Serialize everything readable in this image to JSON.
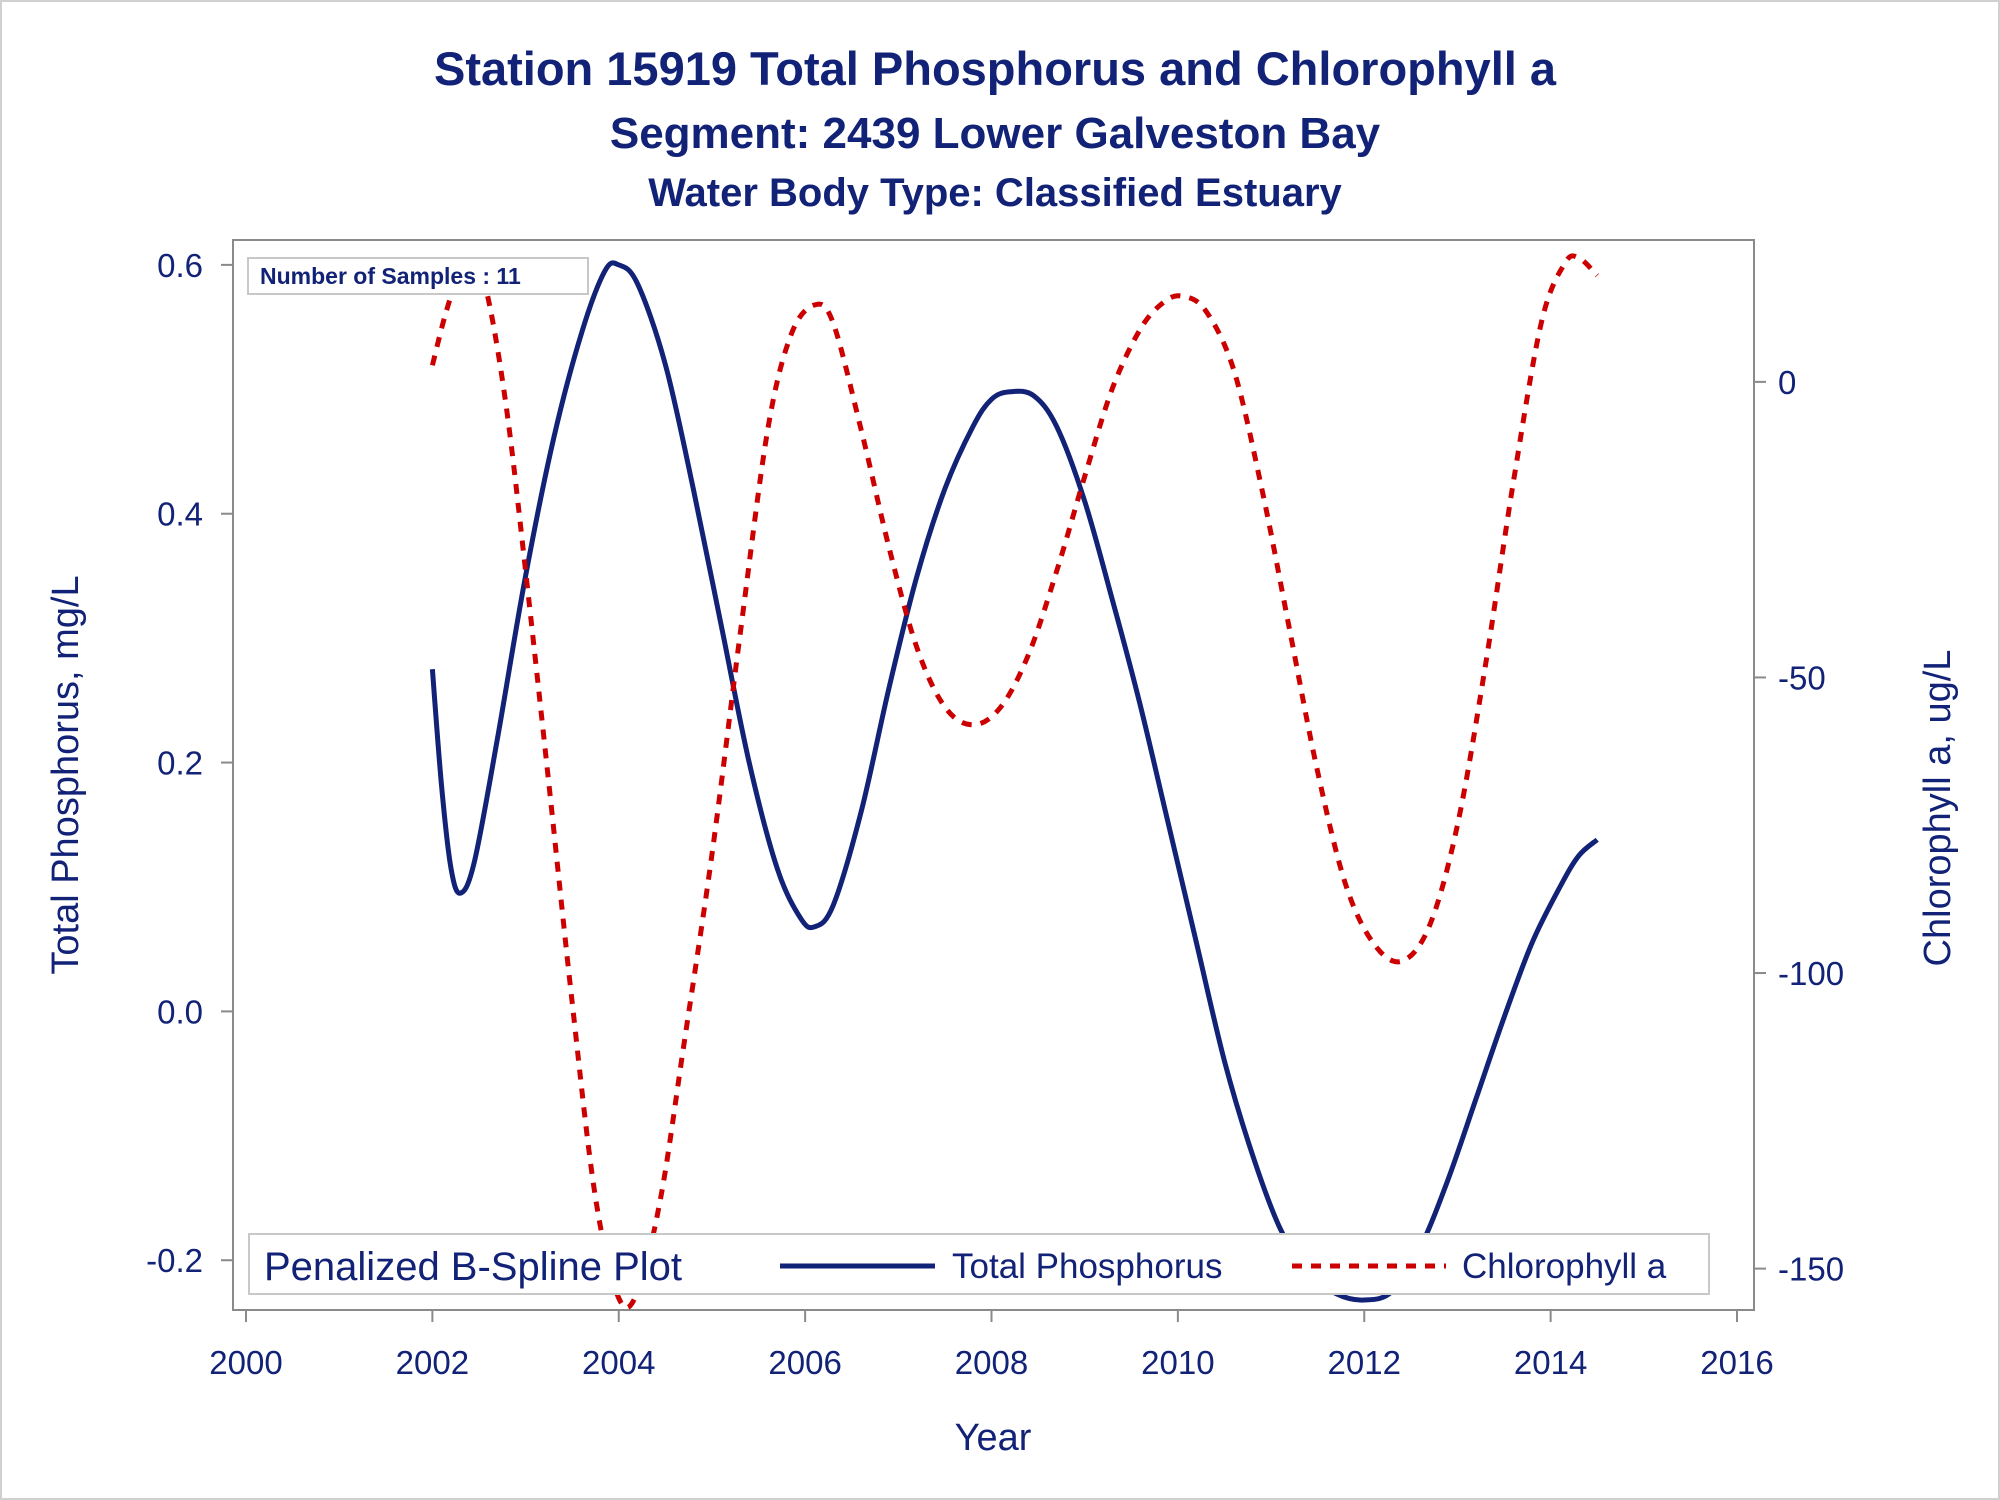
{
  "titles": [
    "Station 15919  Total Phosphorus and Chlorophyll a",
    "Segment: 2439  Lower Galveston Bay",
    "Water Body Type: Classified Estuary"
  ],
  "inset_label": "Number of Samples : 11",
  "colors": {
    "text": "#112277",
    "phosphorus": "#112277",
    "chlorophyll": "#cc0000",
    "axis": "#8a8a8a"
  },
  "chart_data": {
    "type": "line",
    "xlabel": "Year",
    "ylabel": "Total Phosphorus, mg/L",
    "y2label": "Chlorophyll a, ug/L",
    "xlim": [
      2000,
      2016
    ],
    "ylim": [
      -0.24,
      0.62
    ],
    "y2lim": [
      -157,
      24
    ],
    "x_ticks": [
      "2000",
      "2002",
      "2004",
      "2006",
      "2008",
      "2010",
      "2012",
      "2014",
      "2016"
    ],
    "y_ticks": [
      "-0.2",
      "0.0",
      "0.2",
      "0.4",
      "0.6"
    ],
    "y2_ticks": [
      "-150",
      "-100",
      "-50",
      "0"
    ],
    "legend": {
      "title": "Penalized B-Spline Plot",
      "position": "bottom"
    },
    "series": [
      {
        "name": "Total Phosphorus",
        "axis": "left",
        "style": "solid",
        "points": [
          [
            2002.0,
            0.275
          ],
          [
            2002.1,
            0.18
          ],
          [
            2002.2,
            0.115
          ],
          [
            2002.3,
            0.095
          ],
          [
            2002.45,
            0.12
          ],
          [
            2002.7,
            0.22
          ],
          [
            2003.0,
            0.35
          ],
          [
            2003.3,
            0.46
          ],
          [
            2003.6,
            0.545
          ],
          [
            2003.85,
            0.595
          ],
          [
            2004.0,
            0.6
          ],
          [
            2004.2,
            0.585
          ],
          [
            2004.5,
            0.52
          ],
          [
            2004.8,
            0.42
          ],
          [
            2005.1,
            0.31
          ],
          [
            2005.4,
            0.2
          ],
          [
            2005.7,
            0.115
          ],
          [
            2005.95,
            0.075
          ],
          [
            2006.1,
            0.068
          ],
          [
            2006.3,
            0.085
          ],
          [
            2006.6,
            0.16
          ],
          [
            2006.9,
            0.26
          ],
          [
            2007.2,
            0.35
          ],
          [
            2007.5,
            0.42
          ],
          [
            2007.8,
            0.47
          ],
          [
            2008.0,
            0.492
          ],
          [
            2008.2,
            0.498
          ],
          [
            2008.45,
            0.495
          ],
          [
            2008.7,
            0.47
          ],
          [
            2009.0,
            0.41
          ],
          [
            2009.3,
            0.33
          ],
          [
            2009.6,
            0.245
          ],
          [
            2009.9,
            0.15
          ],
          [
            2010.2,
            0.055
          ],
          [
            2010.5,
            -0.04
          ],
          [
            2010.8,
            -0.115
          ],
          [
            2011.1,
            -0.175
          ],
          [
            2011.4,
            -0.21
          ],
          [
            2011.7,
            -0.227
          ],
          [
            2012.0,
            -0.232
          ],
          [
            2012.3,
            -0.225
          ],
          [
            2012.6,
            -0.19
          ],
          [
            2012.9,
            -0.135
          ],
          [
            2013.2,
            -0.07
          ],
          [
            2013.5,
            -0.005
          ],
          [
            2013.8,
            0.055
          ],
          [
            2014.1,
            0.1
          ],
          [
            2014.3,
            0.125
          ],
          [
            2014.5,
            0.138
          ]
        ]
      },
      {
        "name": "Chlorophyll a",
        "axis": "right",
        "style": "dashed",
        "points": [
          [
            2002.0,
            2.8
          ],
          [
            2002.15,
            12
          ],
          [
            2002.3,
            18.5
          ],
          [
            2002.45,
            20
          ],
          [
            2002.6,
            14
          ],
          [
            2002.8,
            -5
          ],
          [
            2003.0,
            -32
          ],
          [
            2003.25,
            -68
          ],
          [
            2003.5,
            -105
          ],
          [
            2003.75,
            -138
          ],
          [
            2004.0,
            -155
          ],
          [
            2004.2,
            -154
          ],
          [
            2004.45,
            -138
          ],
          [
            2004.7,
            -112
          ],
          [
            2005.0,
            -80
          ],
          [
            2005.3,
            -43
          ],
          [
            2005.6,
            -8
          ],
          [
            2005.85,
            8
          ],
          [
            2006.1,
            13
          ],
          [
            2006.3,
            10
          ],
          [
            2006.6,
            -8
          ],
          [
            2006.9,
            -28
          ],
          [
            2007.2,
            -45
          ],
          [
            2007.5,
            -55
          ],
          [
            2007.8,
            -58
          ],
          [
            2008.1,
            -55
          ],
          [
            2008.4,
            -46
          ],
          [
            2008.7,
            -32
          ],
          [
            2009.0,
            -16
          ],
          [
            2009.3,
            -1
          ],
          [
            2009.6,
            9
          ],
          [
            2009.85,
            13.5
          ],
          [
            2010.05,
            14.5
          ],
          [
            2010.3,
            12
          ],
          [
            2010.6,
            2
          ],
          [
            2010.9,
            -18
          ],
          [
            2011.2,
            -42
          ],
          [
            2011.5,
            -66
          ],
          [
            2011.8,
            -85
          ],
          [
            2012.1,
            -95
          ],
          [
            2012.4,
            -98
          ],
          [
            2012.7,
            -92
          ],
          [
            2013.0,
            -75
          ],
          [
            2013.3,
            -48
          ],
          [
            2013.6,
            -17
          ],
          [
            2013.9,
            10
          ],
          [
            2014.15,
            20
          ],
          [
            2014.3,
            21
          ],
          [
            2014.5,
            18
          ]
        ]
      }
    ]
  }
}
